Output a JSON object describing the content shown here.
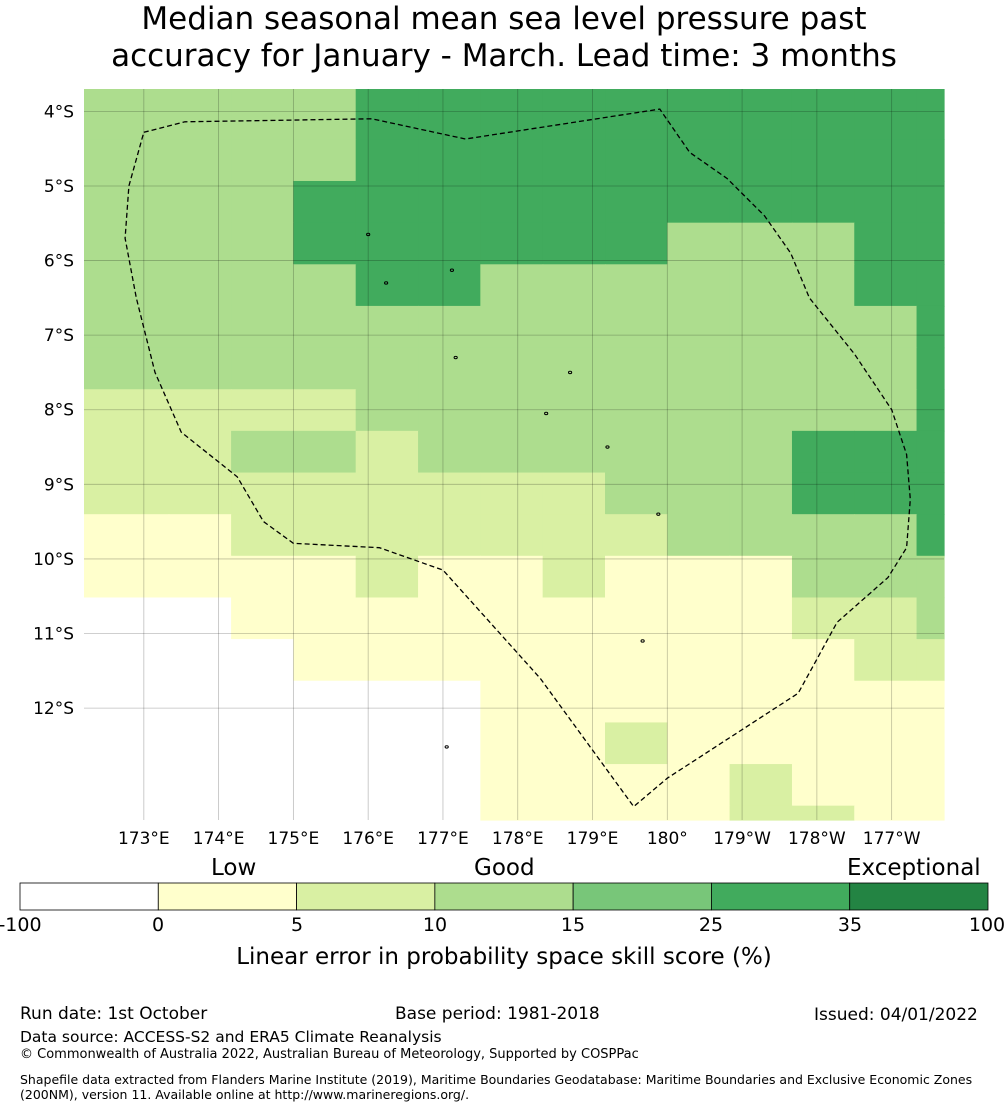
{
  "title": {
    "line1": "Median seasonal mean sea level pressure past",
    "line2": "accuracy for January - March. Lead time: 3 months"
  },
  "map": {
    "lon_range": [
      172.2,
      183.7
    ],
    "lat_range": [
      -13.5,
      -3.7
    ],
    "lat_ticks": [
      {
        "value": -4,
        "label": "4°S"
      },
      {
        "value": -5,
        "label": "5°S"
      },
      {
        "value": -6,
        "label": "6°S"
      },
      {
        "value": -7,
        "label": "7°S"
      },
      {
        "value": -8,
        "label": "8°S"
      },
      {
        "value": -9,
        "label": "9°S"
      },
      {
        "value": -10,
        "label": "10°S"
      },
      {
        "value": -11,
        "label": "11°S"
      },
      {
        "value": -12,
        "label": "12°S"
      }
    ],
    "lon_ticks": [
      {
        "value": 173,
        "label": "173°E"
      },
      {
        "value": 174,
        "label": "174°E"
      },
      {
        "value": 175,
        "label": "175°E"
      },
      {
        "value": 176,
        "label": "176°E"
      },
      {
        "value": 177,
        "label": "177°E"
      },
      {
        "value": 178,
        "label": "178°E"
      },
      {
        "value": 179,
        "label": "179°E"
      },
      {
        "value": 180,
        "label": "180°"
      },
      {
        "value": 181,
        "label": "179°W"
      },
      {
        "value": 182,
        "label": "178°W"
      },
      {
        "value": 183,
        "label": "177°W"
      }
    ],
    "skill_grid": {
      "col_edges_lon": [
        172.2,
        173.333,
        174.167,
        175.0,
        175.833,
        176.667,
        177.5,
        178.333,
        179.167,
        180.0,
        180.833,
        181.667,
        182.5,
        183.333,
        183.7
      ],
      "row_edges_lat": [
        -3.7,
        -4.375,
        -4.933,
        -5.492,
        -6.05,
        -6.608,
        -7.167,
        -7.725,
        -8.283,
        -8.842,
        -9.4,
        -9.958,
        -10.517,
        -11.075,
        -11.633,
        -12.192,
        -12.75,
        -13.308,
        -13.5
      ],
      "classes": [
        [
          3,
          3,
          3,
          3,
          5,
          5,
          5,
          5,
          5,
          5,
          5,
          5,
          5,
          5
        ],
        [
          3,
          3,
          3,
          3,
          5,
          5,
          5,
          5,
          5,
          5,
          5,
          5,
          5,
          5
        ],
        [
          3,
          3,
          3,
          5,
          5,
          5,
          5,
          5,
          5,
          5,
          5,
          5,
          5,
          5
        ],
        [
          3,
          3,
          3,
          5,
          5,
          5,
          5,
          5,
          5,
          3,
          3,
          3,
          5,
          5
        ],
        [
          3,
          3,
          3,
          3,
          5,
          5,
          3,
          3,
          3,
          3,
          3,
          3,
          5,
          5
        ],
        [
          3,
          3,
          3,
          3,
          3,
          3,
          3,
          3,
          3,
          3,
          3,
          3,
          3,
          5
        ],
        [
          3,
          3,
          3,
          3,
          3,
          3,
          3,
          3,
          3,
          3,
          3,
          3,
          3,
          5
        ],
        [
          2,
          2,
          2,
          2,
          3,
          3,
          3,
          3,
          3,
          3,
          3,
          3,
          3,
          5
        ],
        [
          2,
          2,
          3,
          3,
          2,
          3,
          3,
          3,
          3,
          3,
          3,
          5,
          5,
          5
        ],
        [
          2,
          2,
          2,
          2,
          2,
          2,
          2,
          2,
          3,
          3,
          3,
          5,
          5,
          5
        ],
        [
          1,
          1,
          2,
          2,
          2,
          2,
          2,
          2,
          2,
          3,
          3,
          3,
          3,
          5
        ],
        [
          1,
          1,
          1,
          1,
          2,
          1,
          1,
          2,
          1,
          1,
          1,
          3,
          3,
          3
        ],
        [
          0,
          0,
          1,
          1,
          1,
          1,
          1,
          1,
          1,
          1,
          1,
          2,
          2,
          3
        ],
        [
          0,
          0,
          0,
          1,
          1,
          1,
          1,
          1,
          1,
          1,
          1,
          1,
          2,
          2
        ],
        [
          0,
          0,
          0,
          0,
          0,
          0,
          1,
          1,
          1,
          1,
          1,
          1,
          1,
          1
        ],
        [
          0,
          0,
          0,
          0,
          0,
          0,
          1,
          1,
          2,
          1,
          1,
          1,
          1,
          1
        ],
        [
          0,
          0,
          0,
          0,
          0,
          0,
          1,
          1,
          1,
          1,
          2,
          1,
          1,
          1
        ],
        [
          0,
          0,
          0,
          0,
          0,
          0,
          1,
          1,
          1,
          1,
          2,
          2,
          1,
          1
        ]
      ]
    },
    "eez_boundary_lonlat": [
      [
        173.0,
        -4.28
      ],
      [
        173.55,
        -4.14
      ],
      [
        176.05,
        -4.1
      ],
      [
        177.3,
        -4.37
      ],
      [
        179.9,
        -3.97
      ],
      [
        180.3,
        -4.55
      ],
      [
        180.8,
        -4.9
      ],
      [
        181.3,
        -5.4
      ],
      [
        181.65,
        -5.9
      ],
      [
        181.9,
        -6.5
      ],
      [
        182.5,
        -7.25
      ],
      [
        183.0,
        -8.0
      ],
      [
        183.2,
        -8.6
      ],
      [
        183.25,
        -9.2
      ],
      [
        183.2,
        -9.85
      ],
      [
        182.95,
        -10.25
      ],
      [
        182.27,
        -10.85
      ],
      [
        181.75,
        -11.8
      ],
      [
        180.0,
        -12.94
      ],
      [
        179.55,
        -13.32
      ],
      [
        178.3,
        -11.6
      ],
      [
        177.0,
        -10.15
      ],
      [
        176.15,
        -9.85
      ],
      [
        175.0,
        -9.79
      ],
      [
        174.6,
        -9.5
      ],
      [
        174.25,
        -8.9
      ],
      [
        173.5,
        -8.3
      ],
      [
        173.15,
        -7.5
      ],
      [
        172.9,
        -6.5
      ],
      [
        172.75,
        -5.7
      ],
      [
        172.8,
        -5.0
      ],
      [
        173.0,
        -4.28
      ]
    ],
    "islands_lonlat": [
      [
        176.0,
        -5.65
      ],
      [
        176.24,
        -6.3
      ],
      [
        177.12,
        -6.13
      ],
      [
        177.17,
        -7.3
      ],
      [
        178.7,
        -7.5
      ],
      [
        178.38,
        -8.05
      ],
      [
        179.2,
        -8.5
      ],
      [
        179.88,
        -9.4
      ],
      [
        179.67,
        -11.1
      ],
      [
        177.05,
        -12.52
      ]
    ]
  },
  "colorbar": {
    "colors": [
      "#ffffff",
      "#ffffcc",
      "#d9f0a3",
      "#addd8e",
      "#78c679",
      "#41ab5d",
      "#238443"
    ],
    "ticks": [
      "-100",
      "0",
      "5",
      "10",
      "15",
      "25",
      "35",
      "100"
    ],
    "category_low": "Low",
    "category_good": "Good",
    "category_exceptional": "Exceptional",
    "label": "Linear error in probability space skill score (%)"
  },
  "footer": {
    "run_date": "Run date: 1st October",
    "base_period": "Base period: 1981-2018",
    "issued": "Issued: 04/01/2022",
    "data_source": "Data source: ACCESS-S2 and ERA5 Climate Reanalysis",
    "copyright": "© Commonwealth of Australia 2022, Australian Bureau of Meteorology, Supported by COSPPac",
    "shapefile": "Shapefile data extracted from Flanders Marine Institute (2019), Maritime Boundaries Geodatabase: Maritime Boundaries and Exclusive Economic Zones (200NM), version 11. Available online at http://www.marineregions.org/."
  }
}
